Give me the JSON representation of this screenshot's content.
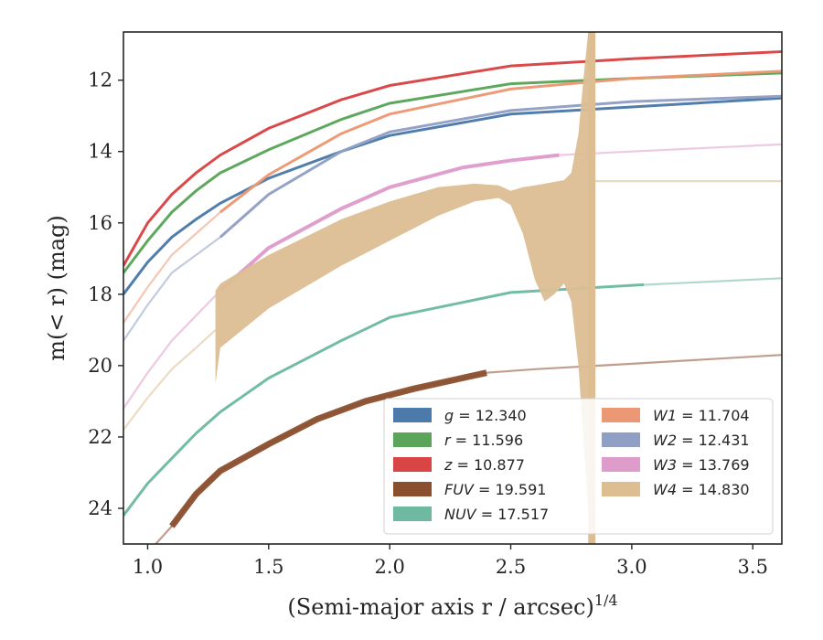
{
  "chart_data": {
    "type": "line",
    "xlabel": "(Semi-major axis r / arcsec)",
    "xlabel_sup": "1/4",
    "ylabel": "m(< r) (mag)",
    "xlim": [
      0.9,
      3.62
    ],
    "ylim": [
      25.0,
      10.65
    ],
    "y_inverted": true,
    "grid": false,
    "legend_position": "lower-right",
    "x_ticks": [
      1.0,
      1.5,
      2.0,
      2.5,
      3.0,
      3.5
    ],
    "x_tick_labels": [
      "1.0",
      "1.5",
      "2.0",
      "2.5",
      "3.0",
      "3.5"
    ],
    "y_ticks": [
      12,
      14,
      16,
      18,
      20,
      22,
      24
    ],
    "y_tick_labels": [
      "12",
      "14",
      "16",
      "18",
      "20",
      "22",
      "24"
    ],
    "series": [
      {
        "name": "g",
        "value": "12.340",
        "color": "#4c7aaa",
        "x": [
          0.9,
          1.0,
          1.1,
          1.2,
          1.3,
          1.5,
          1.8,
          2.0,
          2.5,
          3.0,
          3.62
        ],
        "y": [
          18.0,
          17.1,
          16.4,
          15.9,
          15.45,
          14.75,
          14.0,
          13.55,
          12.95,
          12.75,
          12.5
        ],
        "solid_until": 3.62,
        "width": 3
      },
      {
        "name": "r",
        "value": "11.596",
        "color": "#5aa55a",
        "x": [
          0.9,
          1.0,
          1.1,
          1.2,
          1.3,
          1.5,
          1.8,
          2.0,
          2.5,
          3.0,
          3.62
        ],
        "y": [
          17.4,
          16.5,
          15.7,
          15.1,
          14.6,
          13.95,
          13.1,
          12.65,
          12.1,
          11.95,
          11.8
        ],
        "solid_until": 3.62,
        "width": 3
      },
      {
        "name": "z",
        "value": "10.877",
        "color": "#d94545",
        "x": [
          0.9,
          1.0,
          1.1,
          1.2,
          1.3,
          1.5,
          1.8,
          2.0,
          2.5,
          3.0,
          3.62
        ],
        "y": [
          17.2,
          16.0,
          15.2,
          14.6,
          14.1,
          13.35,
          12.55,
          12.15,
          11.6,
          11.4,
          11.2
        ],
        "solid_until": 3.62,
        "width": 3
      },
      {
        "name": "FUV",
        "value": "19.591",
        "color": "#8a4f2e",
        "x": [
          1.1,
          1.2,
          1.3,
          1.5,
          1.7,
          1.9,
          2.1,
          2.3,
          2.4,
          2.6,
          3.0,
          3.62
        ],
        "y": [
          24.5,
          23.6,
          22.95,
          22.2,
          21.5,
          21.0,
          20.65,
          20.35,
          20.2,
          20.1,
          19.95,
          19.7
        ],
        "start_faint": [
          0.9,
          1.1
        ],
        "solid_until": 2.4,
        "width": 7
      },
      {
        "name": "NUV",
        "value": "17.517",
        "color": "#6fb9a3",
        "x": [
          0.9,
          1.0,
          1.1,
          1.2,
          1.3,
          1.5,
          1.8,
          2.0,
          2.5,
          3.0,
          3.62
        ],
        "y": [
          24.2,
          23.3,
          22.6,
          21.9,
          21.3,
          20.35,
          19.3,
          18.65,
          17.95,
          17.75,
          17.55
        ],
        "solid_until": 3.05,
        "width": 3
      },
      {
        "name": "W1",
        "value": "11.704",
        "color": "#ec9874",
        "x": [
          0.9,
          1.0,
          1.1,
          1.2,
          1.3,
          1.5,
          1.8,
          2.0,
          2.5,
          3.0,
          3.62
        ],
        "y": [
          18.8,
          17.8,
          16.9,
          16.3,
          15.7,
          14.65,
          13.5,
          12.95,
          12.25,
          11.95,
          11.75
        ],
        "solid_until": 3.62,
        "width": 3
      },
      {
        "name": "W2",
        "value": "12.431",
        "color": "#909fc4",
        "x": [
          0.9,
          1.0,
          1.1,
          1.2,
          1.3,
          1.5,
          1.8,
          2.0,
          2.5,
          3.0,
          3.62
        ],
        "y": [
          19.3,
          18.3,
          17.4,
          16.9,
          16.4,
          15.2,
          14.0,
          13.45,
          12.85,
          12.6,
          12.45
        ],
        "solid_until": 3.62,
        "width": 3
      },
      {
        "name": "W3",
        "value": "13.769",
        "color": "#de9ccb",
        "x": [
          0.9,
          1.0,
          1.1,
          1.2,
          1.3,
          1.5,
          1.8,
          2.0,
          2.3,
          2.5,
          2.7,
          3.0,
          3.62
        ],
        "y": [
          21.2,
          20.2,
          19.3,
          18.6,
          17.9,
          16.7,
          15.6,
          15.0,
          14.45,
          14.25,
          14.1,
          14.0,
          13.8
        ],
        "solid_until": 2.7,
        "width": 4
      },
      {
        "name": "W4",
        "value": "14.830",
        "color": "#dcbe92",
        "x": [
          0.9,
          1.0,
          1.1,
          1.2,
          1.28
        ],
        "y": [
          21.8,
          20.9,
          20.1,
          19.5,
          19.0
        ],
        "flat_after": {
          "x": [
            2.85,
            3.62
          ],
          "y": 14.83
        },
        "band_x": [
          1.28,
          1.3,
          1.5,
          1.8,
          2.0,
          2.2,
          2.35,
          2.45,
          2.5,
          2.55,
          2.6,
          2.64,
          2.68,
          2.72,
          2.75,
          2.78,
          2.8,
          2.82,
          2.84
        ],
        "band_lower": [
          20.5,
          19.5,
          18.4,
          17.2,
          16.5,
          15.8,
          15.4,
          15.3,
          15.5,
          16.3,
          17.6,
          18.2,
          18.0,
          17.7,
          18.2,
          20.0,
          22.0,
          24.0,
          25.0
        ],
        "band_upper": [
          17.9,
          17.7,
          16.9,
          15.9,
          15.4,
          15.0,
          14.9,
          14.95,
          15.1,
          15.0,
          14.95,
          14.9,
          14.85,
          14.8,
          14.6,
          13.5,
          12.0,
          10.65,
          10.65
        ],
        "width": 3
      }
    ]
  }
}
